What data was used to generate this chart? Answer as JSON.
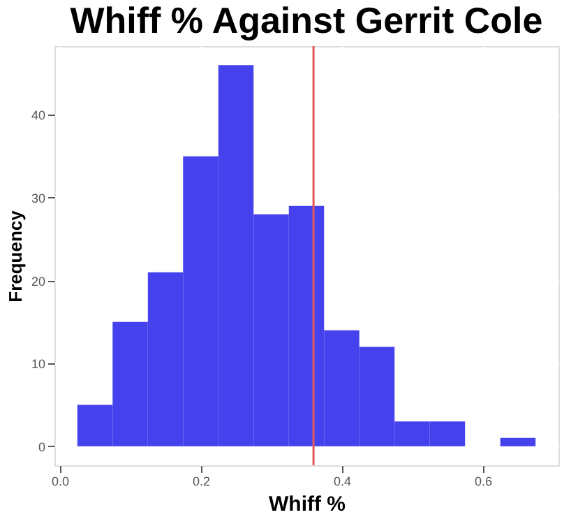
{
  "chart_data": {
    "type": "histogram",
    "title": "Whiff % Against Gerrit Cole",
    "xlabel": "Whiff %",
    "ylabel": "Frequency",
    "bins": [
      0.025,
      0.075,
      0.125,
      0.175,
      0.225,
      0.275,
      0.325,
      0.375,
      0.425,
      0.475,
      0.525,
      0.575,
      0.625,
      0.675
    ],
    "values": [
      5,
      15,
      21,
      35,
      46,
      28,
      29,
      14,
      12,
      3,
      3,
      0,
      1
    ],
    "color": "#4541ec",
    "xlim": [
      -0.0075,
      0.7075
    ],
    "xticks": [
      {
        "value": 0,
        "label": "0.0"
      },
      {
        "value": 0.2,
        "label": "0.2"
      },
      {
        "value": 0.4,
        "label": "0.4"
      },
      {
        "value": 0.6,
        "label": "0.6"
      }
    ],
    "ylim": [
      -2.3,
      48.3
    ],
    "yticks": [
      0,
      10,
      20,
      30,
      40
    ],
    "ref_lines": [
      {
        "axis": "x",
        "value": 0.36,
        "color": "#e05a5a"
      }
    ],
    "grid": true
  }
}
